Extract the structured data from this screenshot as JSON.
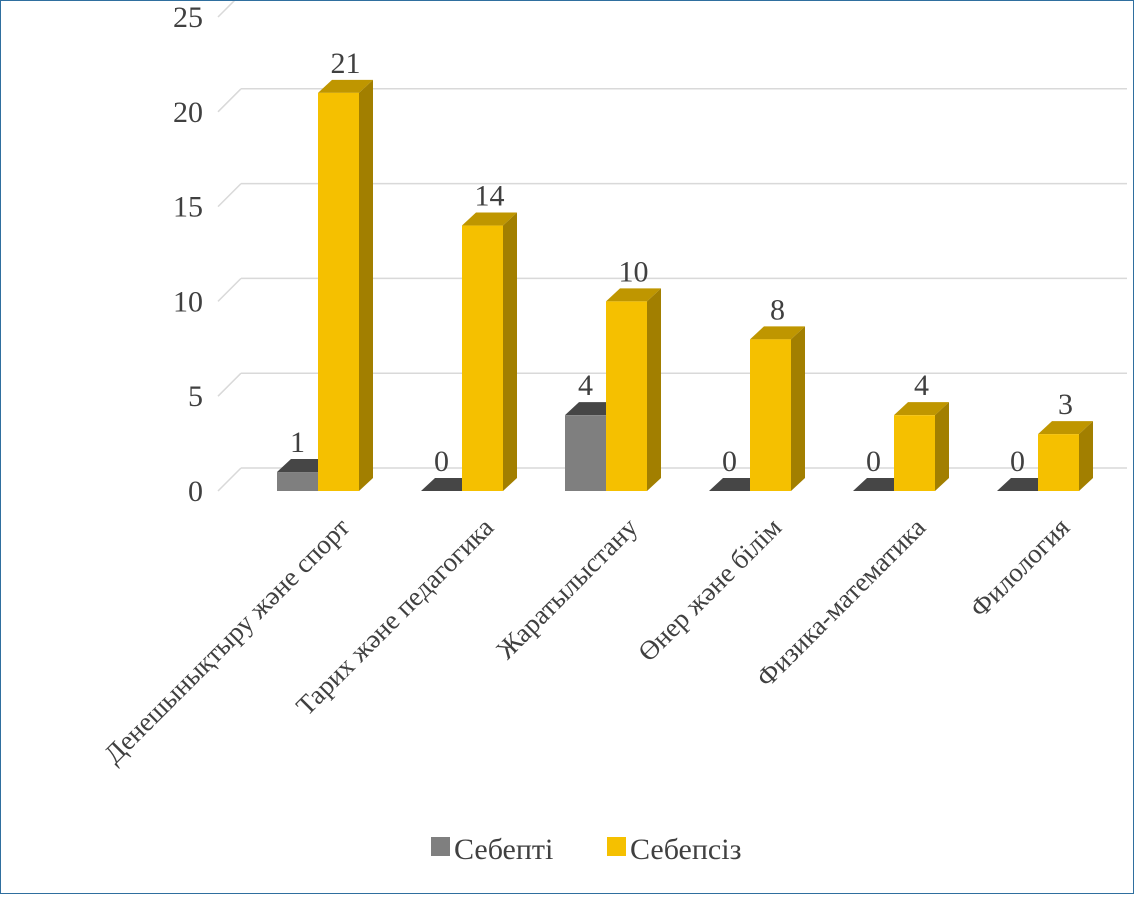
{
  "chart_data": {
    "type": "bar",
    "categories": [
      "Денешынықтыру және спорт",
      "Тарих және педагогика",
      "Жаратылыстану",
      "Өнер және білім",
      "Физика-математика",
      "Филология"
    ],
    "series": [
      {
        "name": "Себепті",
        "values": [
          1,
          0,
          4,
          0,
          0,
          0
        ],
        "color": "#7f7f7f"
      },
      {
        "name": "Себепсіз",
        "values": [
          21,
          14,
          10,
          8,
          4,
          3
        ],
        "color": "#f5c000"
      }
    ],
    "y_ticks": [
      "0",
      "5",
      "10",
      "15",
      "20",
      "25"
    ],
    "ylim": [
      0,
      25
    ],
    "grid": true,
    "legend": "bottom",
    "style": "3d-clustered-column"
  }
}
